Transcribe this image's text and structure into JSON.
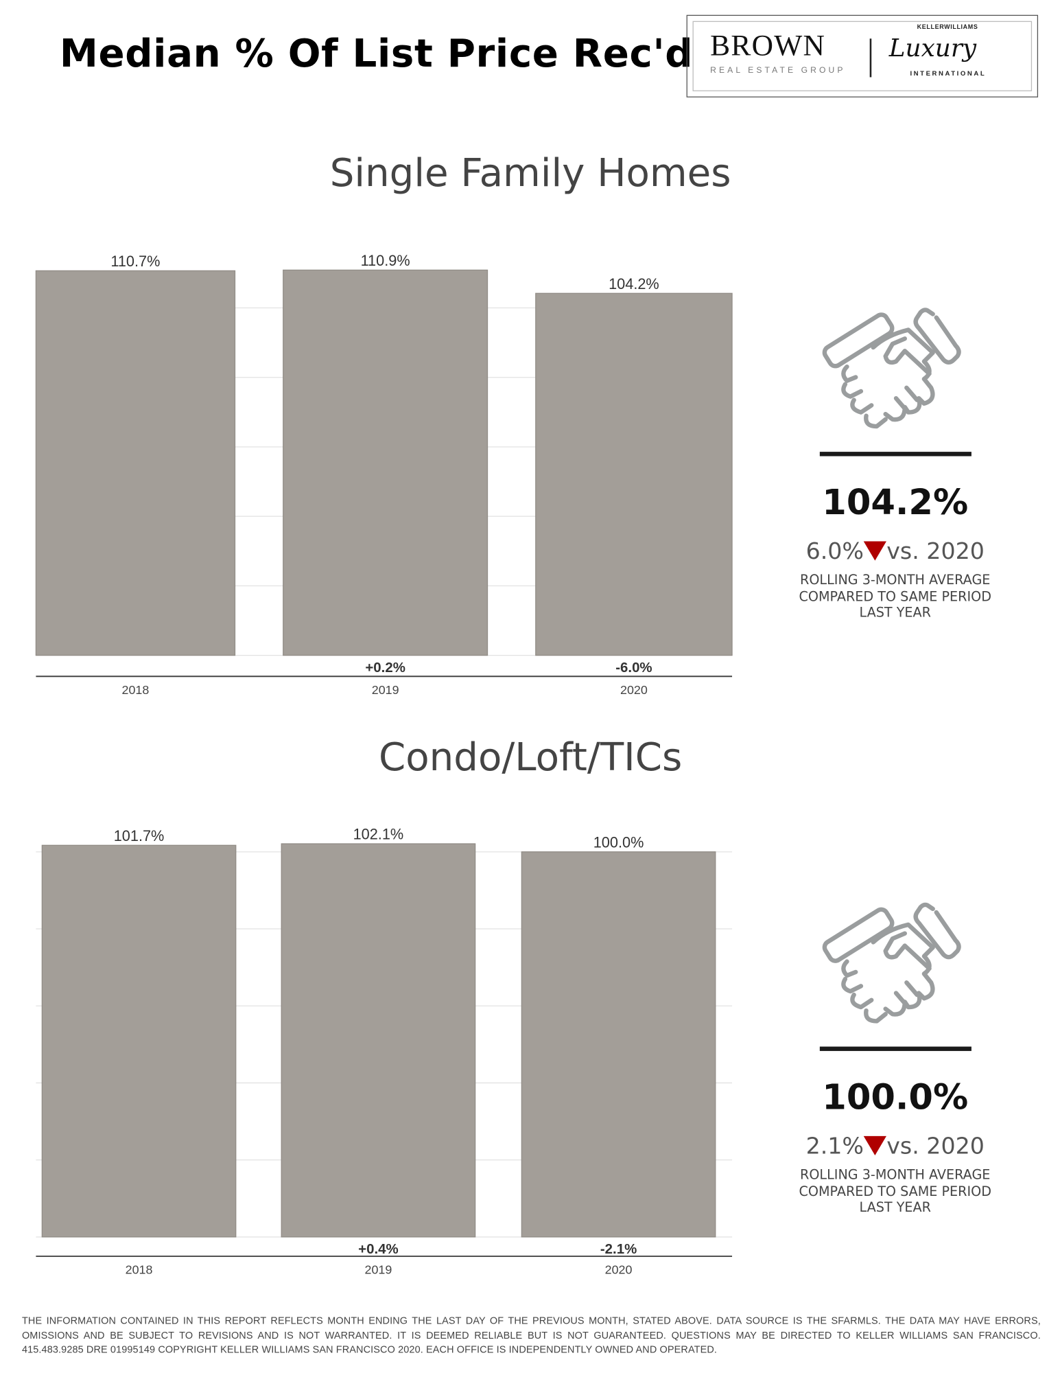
{
  "header": {
    "title": "Median % Of List Price Rec'd"
  },
  "logo": {
    "brand": "BROWN",
    "subtitle": "REAL ESTATE GROUP",
    "partner_top": "KELLERWILLIAMS",
    "partner_script": "Luxury",
    "partner_bottom": "INTERNATIONAL"
  },
  "colors": {
    "bar": "#a39e98",
    "down_arrow": "#b00000",
    "gridline": "#e2e2e2"
  },
  "sections": [
    {
      "title": "Single Family Homes",
      "summary": {
        "icon": "handshake-icon",
        "value": "104.2%",
        "change": "6.0%",
        "direction": "down",
        "comparison": "vs. 2020",
        "note_lines": [
          "ROLLING 3-MONTH AVERAGE",
          "COMPARED TO SAME PERIOD",
          "LAST YEAR"
        ]
      }
    },
    {
      "title": "Condo/Loft/TICs",
      "summary": {
        "icon": "handshake-icon",
        "value": "100.0%",
        "change": "2.1%",
        "direction": "down",
        "comparison": "vs. 2020",
        "note_lines": [
          "ROLLING 3-MONTH AVERAGE",
          "COMPARED TO SAME PERIOD",
          "LAST YEAR"
        ]
      }
    }
  ],
  "chart_data": [
    {
      "type": "bar",
      "title": "Single Family Homes",
      "categories": [
        "2018",
        "2019",
        "2020"
      ],
      "values": [
        110.7,
        110.9,
        104.2
      ],
      "value_labels": [
        "110.7%",
        "110.9%",
        "104.2%"
      ],
      "change_labels": [
        "",
        "+0.2%",
        "-6.0%"
      ],
      "ylim": [
        0,
        100
      ],
      "grid": true,
      "gridline_step": 20
    },
    {
      "type": "bar",
      "title": "Condo/Loft/TICs",
      "categories": [
        "2018",
        "2019",
        "2020"
      ],
      "values": [
        101.7,
        102.1,
        100.0
      ],
      "value_labels": [
        "101.7%",
        "102.1%",
        "100.0%"
      ],
      "change_labels": [
        "",
        "+0.4%",
        "-2.1%"
      ],
      "ylim": [
        0,
        100
      ],
      "grid": true,
      "gridline_step": 20
    }
  ],
  "footer": {
    "text": "THE INFORMATION CONTAINED IN THIS REPORT REFLECTS MONTH ENDING THE LAST DAY OF THE PREVIOUS MONTH, STATED ABOVE. DATA SOURCE IS THE SFARMLS. THE DATA MAY HAVE ERRORS, OMISSIONS AND BE SUBJECT TO REVISIONS AND IS NOT WARRANTED. IT IS DEEMED RELIABLE BUT IS NOT GUARANTEED. QUESTIONS MAY BE DIRECTED TO KELLER WILLIAMS SAN FRANCISCO. 415.483.9285 DRE 01995149 COPYRIGHT KELLER WILLIAMS SAN FRANCISCO 2020. EACH OFFICE IS INDEPENDENTLY OWNED AND OPERATED."
  }
}
